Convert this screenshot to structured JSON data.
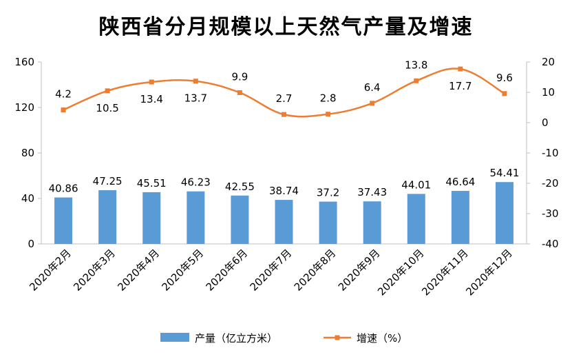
{
  "chart_data": {
    "type": "bar+line",
    "title": "陕西省分月规模以上天然气产量及增速",
    "categories": [
      "2020年2月",
      "2020年3月",
      "2020年4月",
      "2020年5月",
      "2020年6月",
      "2020年7月",
      "2020年8月",
      "2020年9月",
      "2020年10月",
      "2020年11月",
      "2020年12月"
    ],
    "series": [
      {
        "name": "产量（亿立方米）",
        "type": "bar",
        "axis": "left",
        "color": "#5B9BD5",
        "values": [
          40.86,
          47.25,
          45.51,
          46.23,
          42.55,
          38.74,
          37.2,
          37.43,
          44.01,
          46.64,
          54.41
        ],
        "labels": [
          "40.86",
          "47.25",
          "45.51",
          "46.23",
          "42.55",
          "38.74",
          "37.2",
          "37.43",
          "44.01",
          "46.64",
          "54.41"
        ]
      },
      {
        "name": "增速（%）",
        "type": "line",
        "axis": "right",
        "color": "#ED7D31",
        "values": [
          4.2,
          10.5,
          13.4,
          13.7,
          9.9,
          2.7,
          2.8,
          6.4,
          13.8,
          17.7,
          9.6
        ],
        "labels": [
          "4.2",
          "10.5",
          "13.4",
          "13.7",
          "9.9",
          "2.7",
          "2.8",
          "6.4",
          "13.8",
          "17.7",
          "9.6"
        ]
      }
    ],
    "ylim_left": [
      0,
      160
    ],
    "yticks_left": [
      0,
      40,
      80,
      120,
      160
    ],
    "ylim_right": [
      -40,
      20
    ],
    "yticks_right": [
      -40,
      -30,
      -20,
      -10,
      0,
      10,
      20
    ],
    "legend": "bottom"
  }
}
